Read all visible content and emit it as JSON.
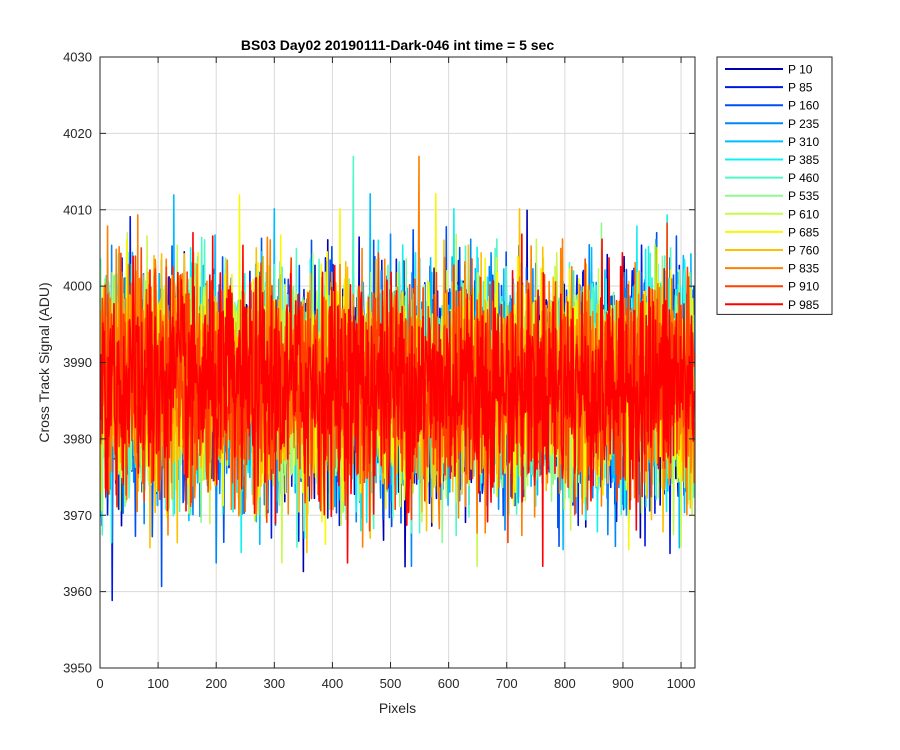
{
  "chart_data": {
    "type": "line",
    "title": "BS03 Day02 20190111-Dark-046 int time = 5 sec",
    "xlabel": "Pixels",
    "ylabel": "Cross Track Signal (ADU)",
    "xlim": [
      0,
      1024
    ],
    "ylim": [
      3950,
      4030
    ],
    "xticks": [
      0,
      100,
      200,
      300,
      400,
      500,
      600,
      700,
      800,
      900,
      1000
    ],
    "yticks": [
      3950,
      3960,
      3970,
      3980,
      3990,
      4000,
      4010,
      4020,
      4030
    ],
    "grid": true,
    "legend_position": "outside-top-right",
    "n_points": 1024,
    "approx_mean": 3987,
    "approx_sd": 7,
    "series": [
      {
        "name": "P 10",
        "color": "#0000b3"
      },
      {
        "name": "P 85",
        "color": "#0018e0"
      },
      {
        "name": "P 160",
        "color": "#0050f0"
      },
      {
        "name": "P 235",
        "color": "#0088f8"
      },
      {
        "name": "P 310",
        "color": "#00bcff"
      },
      {
        "name": "P 385",
        "color": "#10f0f0"
      },
      {
        "name": "P 460",
        "color": "#50f8c8"
      },
      {
        "name": "P 535",
        "color": "#90f890"
      },
      {
        "name": "P 610",
        "color": "#c8f850"
      },
      {
        "name": "P 685",
        "color": "#f8f800"
      },
      {
        "name": "P 760",
        "color": "#ffc000"
      },
      {
        "name": "P 835",
        "color": "#ff8000"
      },
      {
        "name": "P 910",
        "color": "#ff4000"
      },
      {
        "name": "P 985",
        "color": "#ff0000"
      }
    ]
  }
}
